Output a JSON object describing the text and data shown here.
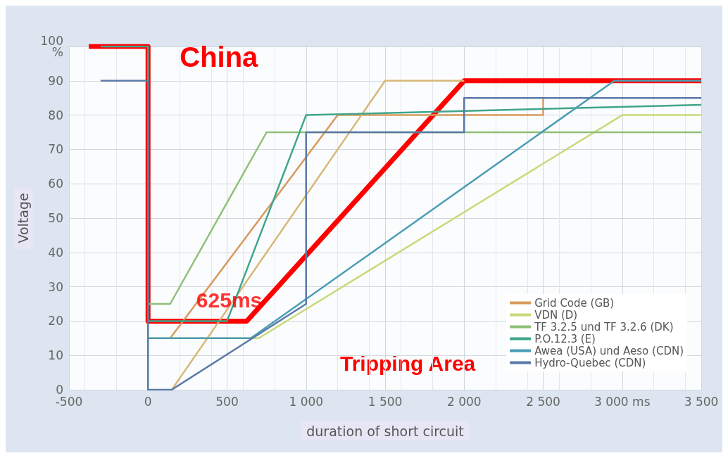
{
  "chart_data": {
    "type": "line",
    "xlabel": "duration of short circuit",
    "ylabel": "Voltage",
    "xlim": [
      -500,
      3500
    ],
    "xticks": [
      -500,
      0,
      500,
      {
        "value": 1000,
        "label": "1 000"
      },
      {
        "value": 1500,
        "label": "1 500"
      },
      {
        "value": 2000,
        "label": "2 000"
      },
      {
        "value": 2500,
        "label": "2 500"
      },
      {
        "value": 3000,
        "label": "3 000 ms"
      },
      {
        "value": 3500,
        "label": "3 500"
      }
    ],
    "ylim": [
      0,
      100
    ],
    "yticks": [
      0,
      10,
      20,
      30,
      40,
      50,
      60,
      70,
      80,
      90,
      {
        "value": 100,
        "label": "100\n%"
      }
    ],
    "grid": true,
    "legend": "bottom right",
    "marker": "none",
    "line_style": "solid",
    "series": [
      {
        "name": "Grid Code (GB)",
        "color": "#d89a5c",
        "x": [
          140,
          1200,
          2500,
          2500
        ],
        "values": [
          15,
          80,
          80,
          85
        ]
      },
      {
        "color": "#d9b77a",
        "x": [
          150,
          1500,
          2000
        ],
        "values": [
          0,
          90,
          90
        ]
      },
      {
        "name": "VDN (D)",
        "color": "#c9d97a",
        "x": [
          0,
          700,
          3000,
          3500
        ],
        "values": [
          15,
          15,
          80,
          80
        ]
      },
      {
        "name": "TF 3.2.5 und TF 3.2.6 (DK)",
        "color": "#8fc07a",
        "x": [
          0,
          140,
          750,
          3500
        ],
        "values": [
          25,
          25,
          75,
          75
        ]
      },
      {
        "name": "P.O.12.3 (E)",
        "color": "#3fa58a",
        "x": [
          -300,
          0,
          0,
          500,
          1000,
          3500
        ],
        "values": [
          100,
          100,
          20,
          20,
          80,
          83
        ]
      },
      {
        "name": "Awea (USA) und Aeso (CDN)",
        "color": "#4a9db5",
        "x": [
          0,
          650,
          2950,
          3500
        ],
        "values": [
          15,
          15,
          90,
          90
        ]
      },
      {
        "name": "Hydro-Quebec (CDN)",
        "color": "#5a7aa8",
        "x": [
          -300,
          0,
          0,
          150,
          1000,
          1000,
          2000,
          2000,
          3500
        ],
        "values": [
          90,
          90,
          0,
          0,
          25,
          75,
          75,
          85,
          85
        ]
      },
      {
        "name": "China",
        "color": "#ff0000",
        "x": [
          -375,
          0,
          0,
          625,
          2000,
          3500
        ],
        "values": [
          100,
          100,
          20,
          20,
          90,
          90
        ]
      }
    ],
    "annotations": [
      {
        "text": "625ms",
        "x": 625,
        "y": 20
      },
      "Tripping Area"
    ]
  }
}
